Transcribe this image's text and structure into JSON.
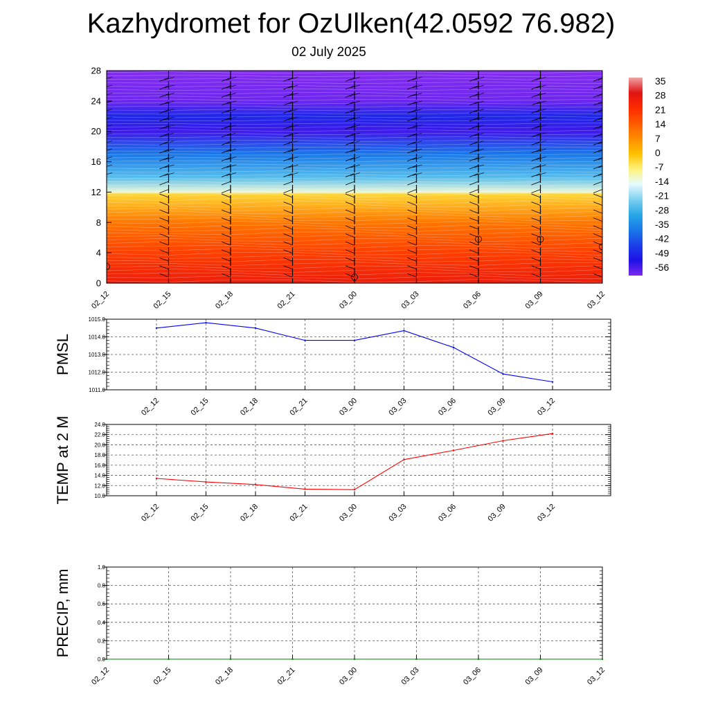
{
  "header": {
    "title": "Kazhydromet for OzUlken(42.0592 76.982)",
    "subtitle": "02 July 2025"
  },
  "chart_data": [
    {
      "type": "heatmap",
      "y_ticks": [
        "0",
        "4",
        "8",
        "12",
        "16",
        "20",
        "24",
        "28"
      ],
      "ylim": [
        0,
        28
      ],
      "x_ticks": [
        "02_12",
        "02_15",
        "02_18",
        "02_21",
        "03_00",
        "03_03",
        "03_06",
        "03_09",
        "03_12"
      ],
      "colorbar_labels": [
        "35",
        "28",
        "21",
        "14",
        "7",
        "0",
        "-7",
        "-14",
        "-21",
        "-28",
        "-35",
        "-42",
        "-49",
        "-56"
      ],
      "colorbar_colors": [
        "#f0a3a3",
        "#e01414",
        "#ff2a00",
        "#ff5a00",
        "#ff8c00",
        "#ffc000",
        "#fff27a",
        "#e6fbff",
        "#7fd0f0",
        "#28a8e8",
        "#1a78e8",
        "#1a40e8",
        "#1e10e6",
        "#7c2af0"
      ],
      "temperature_profile_by_level": [
        {
          "level": 0,
          "value": 25
        },
        {
          "level": 4,
          "value": 18
        },
        {
          "level": 8,
          "value": 10
        },
        {
          "level": 11.7,
          "value": -3
        },
        {
          "level": 12,
          "value": -12
        },
        {
          "level": 14,
          "value": -24
        },
        {
          "level": 17,
          "value": -36
        },
        {
          "level": 20,
          "value": -52
        },
        {
          "level": 22,
          "value": -47
        },
        {
          "level": 24,
          "value": -55
        },
        {
          "level": 28,
          "value": -60
        }
      ],
      "grid": false
    },
    {
      "type": "line",
      "ylabel": "PMSL",
      "categories": [
        "02_12",
        "02_15",
        "02_18",
        "02_21",
        "03_00",
        "03_03",
        "03_06",
        "03_09",
        "03_12"
      ],
      "values": [
        1014.5,
        1014.8,
        1014.5,
        1013.8,
        1013.8,
        1014.35,
        1013.4,
        1011.9,
        1011.45
      ],
      "y_ticks": [
        "1011.0",
        "1012.0",
        "1013.0",
        "1014.0",
        "1015.0"
      ],
      "ylim": [
        1011,
        1015
      ],
      "color": "#0000ff",
      "grid": true
    },
    {
      "type": "line",
      "ylabel": "TEMP at 2 M",
      "categories": [
        "02_12",
        "02_15",
        "02_18",
        "02_21",
        "03_00",
        "03_03",
        "03_06",
        "03_09",
        "03_12"
      ],
      "values": [
        13.4,
        12.7,
        12.2,
        11.3,
        11.2,
        17.1,
        18.9,
        20.8,
        22.2
      ],
      "y_ticks": [
        "10.0",
        "12.0",
        "14.0",
        "16.0",
        "18.0",
        "20.0",
        "22.0",
        "24.0"
      ],
      "ylim": [
        10,
        24
      ],
      "color": "#ff0000",
      "grid": true
    },
    {
      "type": "line",
      "ylabel": "PRECIP, mm",
      "categories": [
        "02_12",
        "02_15",
        "02_18",
        "02_21",
        "03_00",
        "03_03",
        "03_06",
        "03_09",
        "03_12"
      ],
      "values": [
        0,
        0,
        0,
        0,
        0,
        0,
        0,
        0,
        0
      ],
      "y_ticks": [
        "0.0",
        "0.2",
        "0.4",
        "0.6",
        "0.8",
        "1.0"
      ],
      "ylim": [
        0,
        1
      ],
      "color": "#008000",
      "grid": true
    }
  ]
}
